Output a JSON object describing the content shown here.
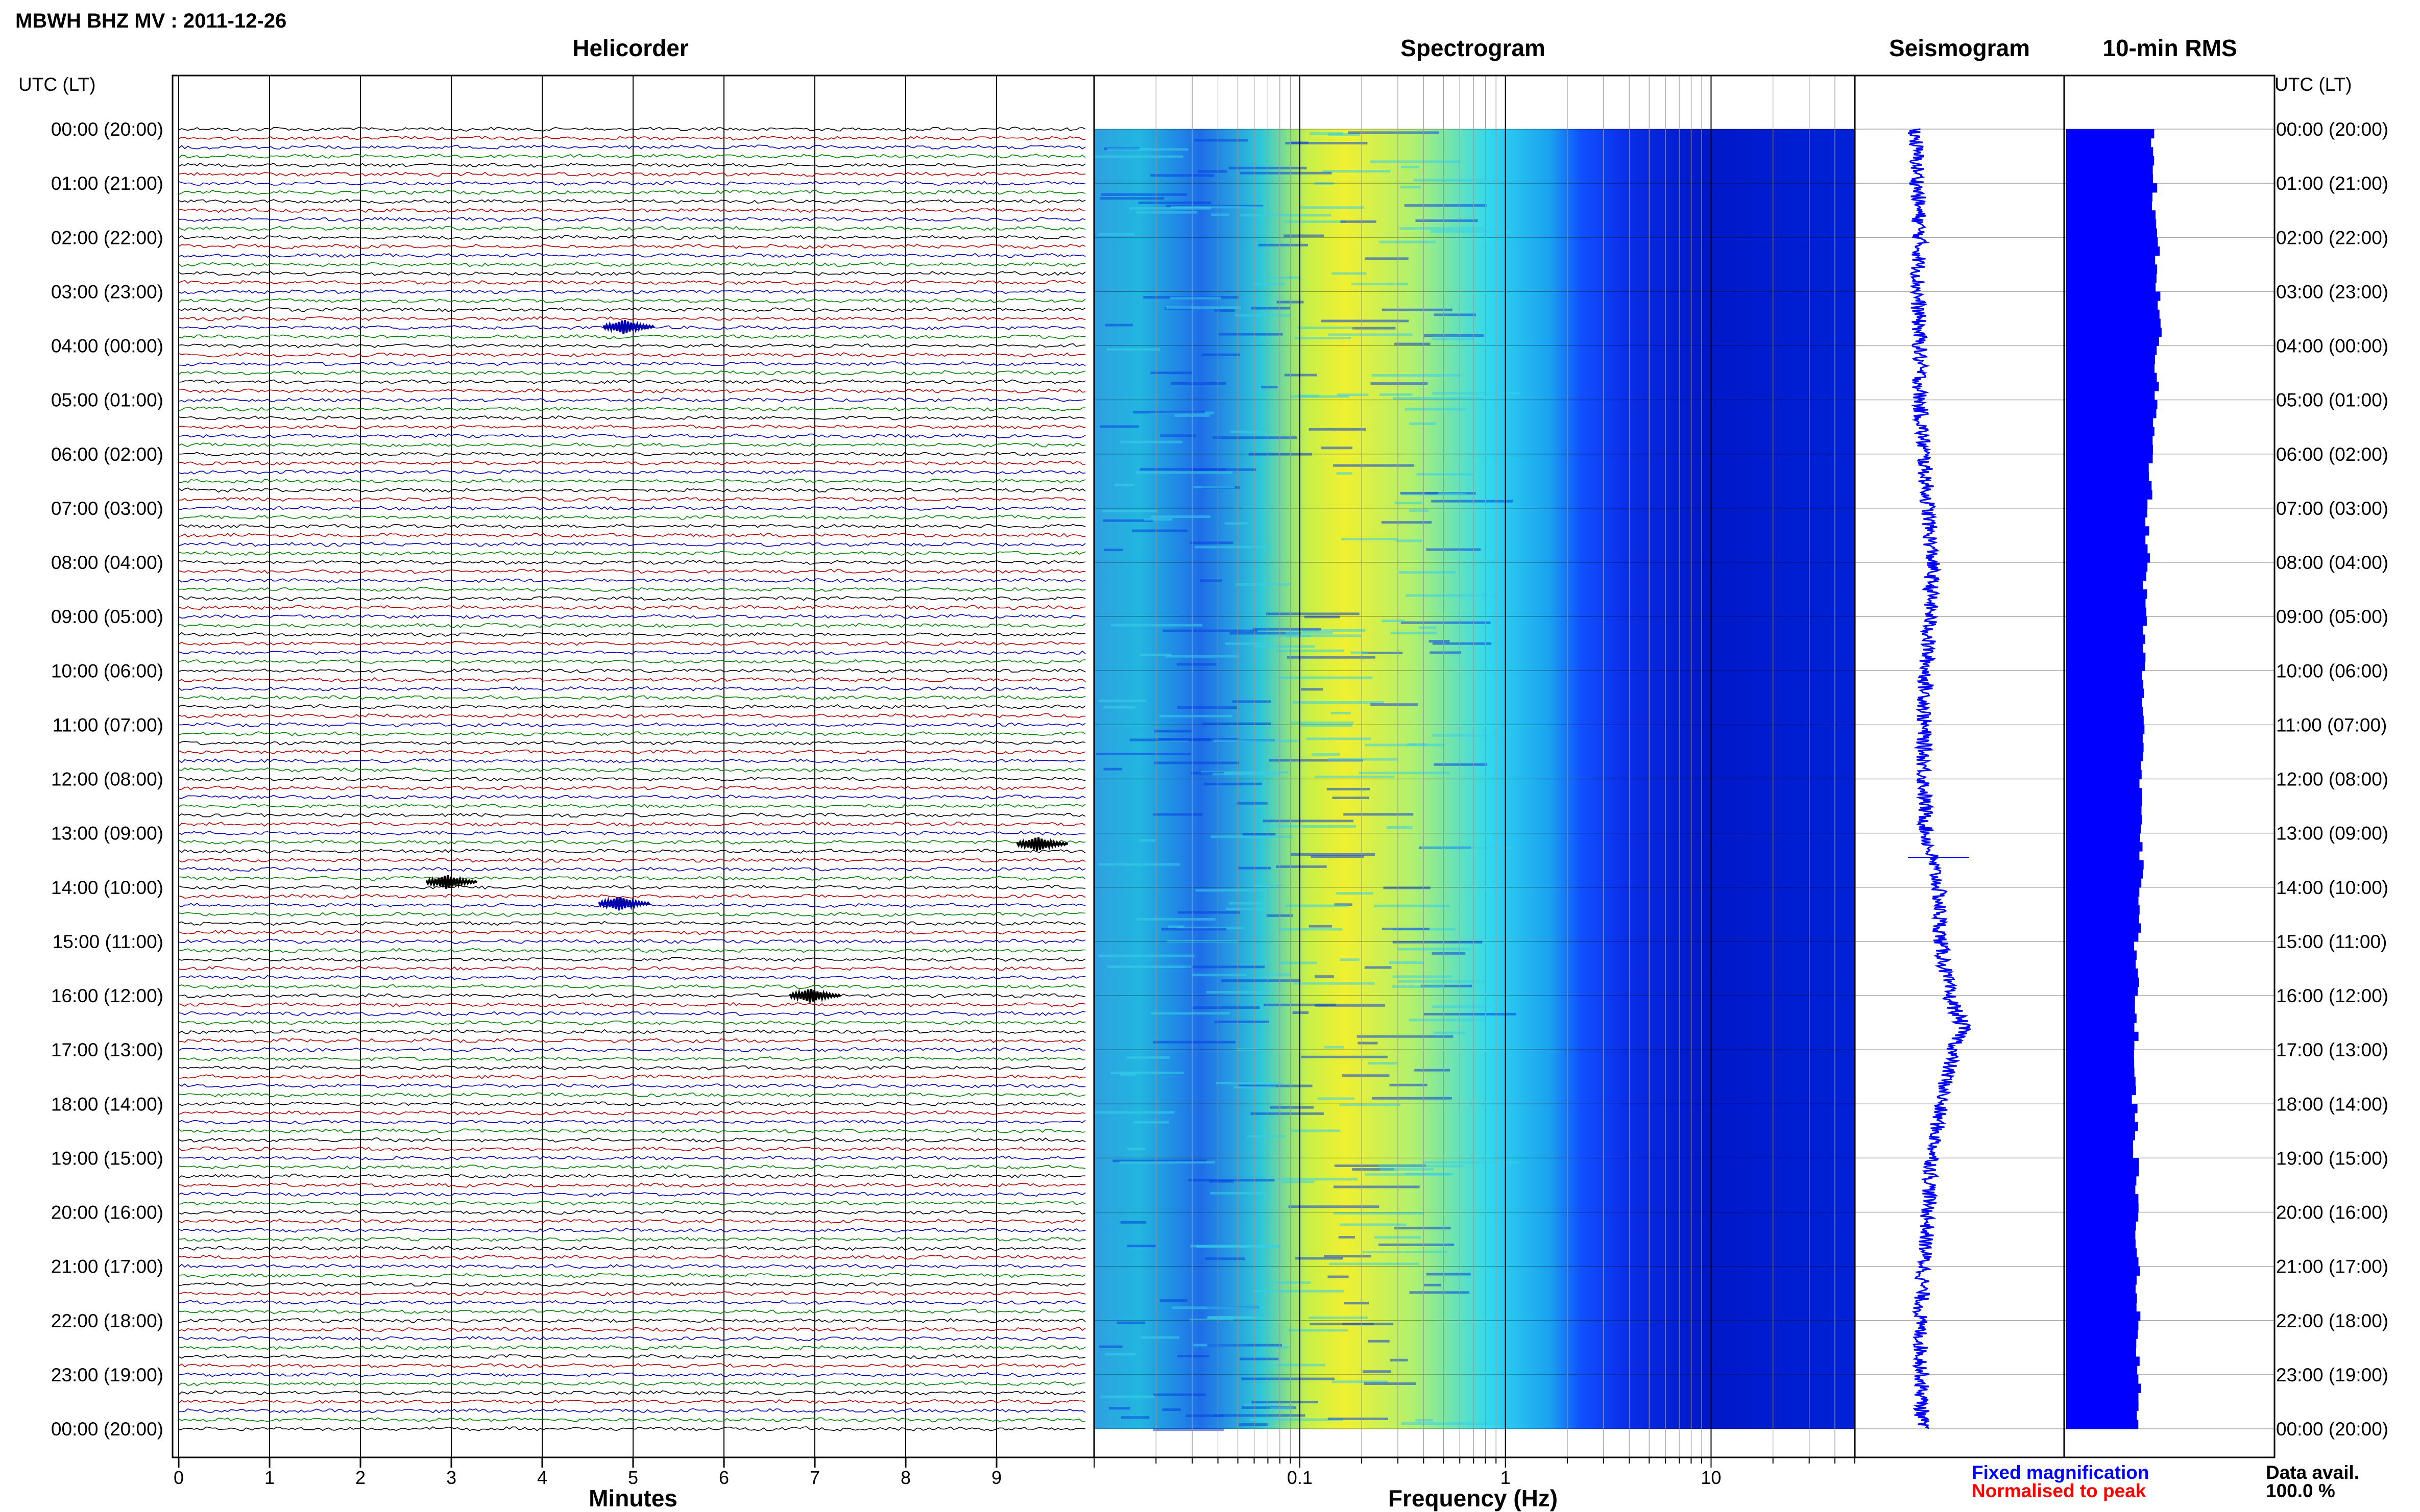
{
  "title": "MBWH BHZ MV : 2011-12-26",
  "colors": {
    "trace_cycle": [
      "#000000",
      "#b00000",
      "#0000b0",
      "#008000"
    ],
    "axis": "#000000",
    "grid": "#aaaaaa",
    "seismogram": "#0000ff",
    "rms_bars": "#0000ff",
    "legend_fixed": "#0000ff",
    "legend_normalised": "#ff0000",
    "spectrogram_colormap": [
      "#00007f",
      "#0000ff",
      "#0080ff",
      "#00d8ff",
      "#80ff80",
      "#ffff00"
    ]
  },
  "time_axis": {
    "header_left": "UTC (LT)",
    "header_right": "UTC (LT)",
    "labels": [
      "00:00 (20:00)",
      "01:00 (21:00)",
      "02:00 (22:00)",
      "03:00 (23:00)",
      "04:00 (00:00)",
      "05:00 (01:00)",
      "06:00 (02:00)",
      "07:00 (03:00)",
      "08:00 (04:00)",
      "09:00 (05:00)",
      "10:00 (06:00)",
      "11:00 (07:00)",
      "12:00 (08:00)",
      "13:00 (09:00)",
      "14:00 (10:00)",
      "15:00 (11:00)",
      "16:00 (12:00)",
      "17:00 (13:00)",
      "18:00 (14:00)",
      "19:00 (15:00)",
      "20:00 (16:00)",
      "21:00 (17:00)",
      "22:00 (18:00)",
      "23:00 (19:00)",
      "00:00 (20:00)"
    ]
  },
  "chart_data": [
    {
      "type": "line",
      "title": "Helicorder",
      "xlabel": "Minutes",
      "xlim": [
        0,
        10
      ],
      "x_ticks": [
        0,
        1,
        2,
        3,
        4,
        5,
        6,
        7,
        8,
        9
      ],
      "rows": 144,
      "row_minutes": 10,
      "events": [
        {
          "hour": 3.65,
          "minute": 4.9,
          "color": "#0000b0"
        },
        {
          "hour": 13.2,
          "minute": 9.45,
          "color": "#000000"
        },
        {
          "hour": 13.9,
          "minute": 2.95,
          "color": "#000000"
        },
        {
          "hour": 14.3,
          "minute": 4.85,
          "color": "#0000b0"
        },
        {
          "hour": 16.0,
          "minute": 6.95,
          "color": "#000000"
        }
      ]
    },
    {
      "type": "heatmap",
      "title": "Spectrogram",
      "xlabel": "Frequency (Hz)",
      "x_scale": "log",
      "xlim": [
        0.01,
        50
      ],
      "x_ticks": [
        0.1,
        1,
        10
      ],
      "x_tick_labels": [
        "0.1",
        "1",
        "10"
      ],
      "ylim_hours": [
        0,
        24
      ]
    },
    {
      "type": "line",
      "title": "Seismogram",
      "ylim_hours": [
        0,
        24
      ],
      "trend": [
        {
          "hour": 0,
          "offset": 0.04
        },
        {
          "hour": 1,
          "offset": 0.05
        },
        {
          "hour": 2,
          "offset": 0.06
        },
        {
          "hour": 3,
          "offset": 0.05
        },
        {
          "hour": 4,
          "offset": 0.06
        },
        {
          "hour": 5,
          "offset": 0.06
        },
        {
          "hour": 6,
          "offset": 0.08
        },
        {
          "hour": 7,
          "offset": 0.1
        },
        {
          "hour": 8,
          "offset": 0.12
        },
        {
          "hour": 9,
          "offset": 0.11
        },
        {
          "hour": 10,
          "offset": 0.09
        },
        {
          "hour": 11,
          "offset": 0.08
        },
        {
          "hour": 12,
          "offset": 0.08
        },
        {
          "hour": 13,
          "offset": 0.09
        },
        {
          "hour": 14,
          "offset": 0.15
        },
        {
          "hour": 15,
          "offset": 0.16
        },
        {
          "hour": 16,
          "offset": 0.2
        },
        {
          "hour": 16.6,
          "offset": 0.27
        },
        {
          "hour": 17,
          "offset": 0.22
        },
        {
          "hour": 18,
          "offset": 0.16
        },
        {
          "hour": 19,
          "offset": 0.12
        },
        {
          "hour": 20,
          "offset": 0.1
        },
        {
          "hour": 21,
          "offset": 0.08
        },
        {
          "hour": 22,
          "offset": 0.06
        },
        {
          "hour": 23,
          "offset": 0.07
        },
        {
          "hour": 24,
          "offset": 0.07
        }
      ]
    },
    {
      "type": "bar",
      "title": "10-min RMS",
      "ylim_hours": [
        0,
        24
      ],
      "bins": 144,
      "bin_minutes": 10,
      "relative_scale_max": 1.0,
      "hourly_level": [
        0.76,
        0.78,
        0.8,
        0.82,
        0.8,
        0.78,
        0.74,
        0.72,
        0.7,
        0.69,
        0.68,
        0.67,
        0.67,
        0.66,
        0.64,
        0.62,
        0.62,
        0.6,
        0.61,
        0.62,
        0.63,
        0.63,
        0.63,
        0.64
      ]
    }
  ],
  "legend": {
    "fixed": "Fixed magnification",
    "normalised": "Normalised to peak"
  },
  "data_avail": {
    "label": "Data avail.",
    "value": "100.0 %"
  }
}
